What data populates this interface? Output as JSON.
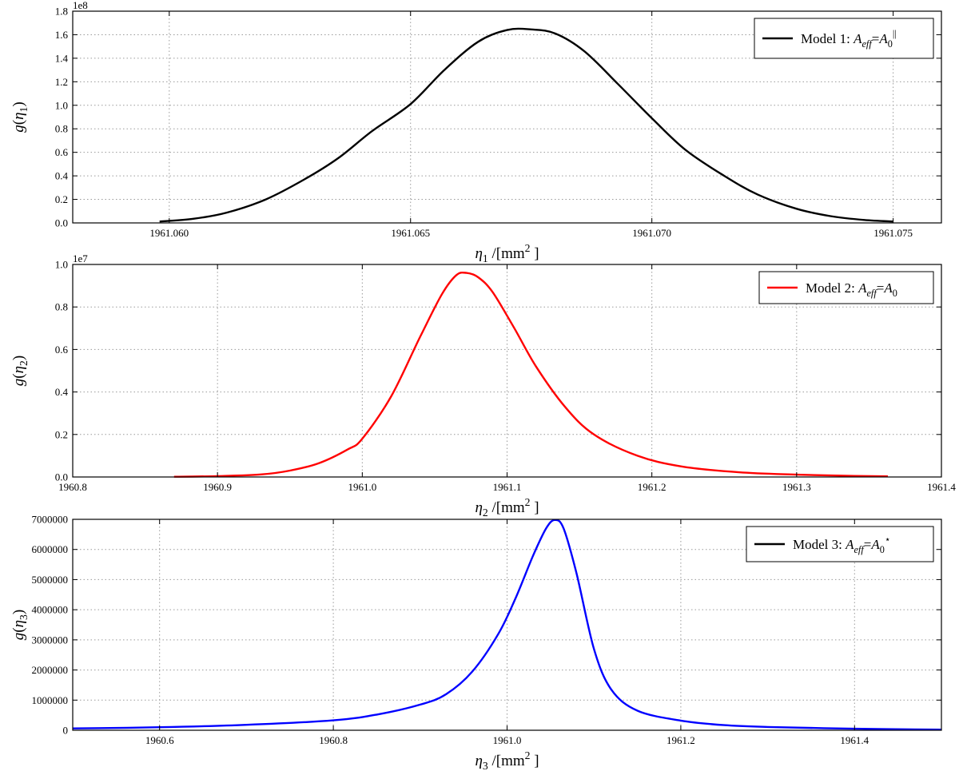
{
  "figure": {
    "chart_data": [
      {
        "type": "line",
        "title": "",
        "offset_text": "1e8",
        "xlabel_parts": [
          {
            "t": "η",
            "italic": true
          },
          {
            "t": "1",
            "sub": true,
            "italic": false
          },
          {
            "t": " /[mm",
            "italic": false
          },
          {
            "t": "2",
            "sup": true,
            "italic": false
          },
          {
            "t": " ]",
            "italic": false
          }
        ],
        "ylabel_parts": [
          {
            "t": "g",
            "italic": true
          },
          {
            "t": "(",
            "italic": false
          },
          {
            "t": "η",
            "italic": true
          },
          {
            "t": "1",
            "sub": true,
            "italic": false
          },
          {
            "t": ")",
            "italic": false
          }
        ],
        "xlim": [
          1961.058,
          1961.076
        ],
        "ylim": [
          0,
          1.8
        ],
        "xticks": [
          1961.06,
          1961.065,
          1961.07,
          1961.075
        ],
        "xticklabels": [
          "1961.060",
          "1961.065",
          "1961.070",
          "1961.075"
        ],
        "yticks": [
          0,
          0.2,
          0.4,
          0.6,
          0.8,
          1.0,
          1.2,
          1.4,
          1.6,
          1.8
        ],
        "yticklabels": [
          "0.0",
          "0.2",
          "0.4",
          "0.6",
          "0.8",
          "1.0",
          "1.2",
          "1.4",
          "1.6",
          "1.8"
        ],
        "grid": true,
        "legend_position": "upper right",
        "series": [
          {
            "color": "#000000",
            "legend_parts": [
              {
                "t": "Model 1: ",
                "italic": false
              },
              {
                "t": "A",
                "italic": true
              },
              {
                "t": "eff",
                "sub": true,
                "italic": true
              },
              {
                "t": "=",
                "italic": false
              },
              {
                "t": "A",
                "italic": true
              },
              {
                "t": "0",
                "sub": true,
                "italic": false
              },
              {
                "t": "||",
                "sup": true,
                "italic": false
              }
            ],
            "x": [
              1961.0598,
              1961.0605,
              1961.0612,
              1961.062,
              1961.0628,
              1961.0635,
              1961.0642,
              1961.065,
              1961.0657,
              1961.0664,
              1961.067,
              1961.0675,
              1961.068,
              1961.0686,
              1961.0693,
              1961.07,
              1961.0707,
              1961.0715,
              1961.0722,
              1961.073,
              1961.0737,
              1961.0744,
              1961.075
            ],
            "y": [
              0.012,
              0.035,
              0.088,
              0.2,
              0.37,
              0.55,
              0.78,
              1.01,
              1.3,
              1.54,
              1.64,
              1.645,
              1.61,
              1.46,
              1.18,
              0.89,
              0.62,
              0.4,
              0.24,
              0.12,
              0.058,
              0.025,
              0.012
            ]
          }
        ]
      },
      {
        "type": "line",
        "title": "",
        "offset_text": "1e7",
        "xlabel_parts": [
          {
            "t": "η",
            "italic": true
          },
          {
            "t": "2",
            "sub": true,
            "italic": false
          },
          {
            "t": " /[mm",
            "italic": false
          },
          {
            "t": "2",
            "sup": true,
            "italic": false
          },
          {
            "t": " ]",
            "italic": false
          }
        ],
        "ylabel_parts": [
          {
            "t": "g",
            "italic": true
          },
          {
            "t": "(",
            "italic": false
          },
          {
            "t": "η",
            "italic": true
          },
          {
            "t": "2",
            "sub": true,
            "italic": false
          },
          {
            "t": ")",
            "italic": false
          }
        ],
        "xlim": [
          1960.8,
          1961.4
        ],
        "ylim": [
          0,
          1.0
        ],
        "xticks": [
          1960.8,
          1960.9,
          1961.0,
          1961.1,
          1961.2,
          1961.3,
          1961.4
        ],
        "xticklabels": [
          "1960.8",
          "1960.9",
          "1961.0",
          "1961.1",
          "1961.2",
          "1961.3",
          "1961.4"
        ],
        "yticks": [
          0,
          0.2,
          0.4,
          0.6,
          0.8,
          1.0
        ],
        "yticklabels": [
          "0.0",
          "0.2",
          "0.4",
          "0.6",
          "0.8",
          "1.0"
        ],
        "grid": true,
        "legend_position": "upper right",
        "series": [
          {
            "color": "#ff0000",
            "legend_parts": [
              {
                "t": "Model 2: ",
                "italic": false
              },
              {
                "t": "A",
                "italic": true
              },
              {
                "t": "eff",
                "sub": true,
                "italic": true
              },
              {
                "t": "=",
                "italic": false
              },
              {
                "t": "A",
                "italic": true
              },
              {
                "t": "0",
                "sub": true,
                "italic": false
              }
            ],
            "x": [
              1960.87,
              1960.9,
              1960.93,
              1960.95,
              1960.97,
              1960.99,
              1961.0,
              1961.02,
              1961.04,
              1961.055,
              1961.065,
              1961.072,
              1961.08,
              1961.09,
              1961.105,
              1961.12,
              1961.14,
              1961.16,
              1961.19,
              1961.22,
              1961.26,
              1961.3,
              1961.34,
              1961.363
            ],
            "y": [
              0.001,
              0.004,
              0.012,
              0.03,
              0.065,
              0.13,
              0.18,
              0.38,
              0.66,
              0.86,
              0.95,
              0.96,
              0.94,
              0.87,
              0.7,
              0.52,
              0.33,
              0.2,
              0.1,
              0.05,
              0.022,
              0.011,
              0.005,
              0.003
            ]
          }
        ]
      },
      {
        "type": "line",
        "title": "",
        "offset_text": "",
        "xlabel_parts": [
          {
            "t": "η",
            "italic": true
          },
          {
            "t": "3",
            "sub": true,
            "italic": false
          },
          {
            "t": " /[mm",
            "italic": false
          },
          {
            "t": "2",
            "sup": true,
            "italic": false
          },
          {
            "t": " ]",
            "italic": false
          }
        ],
        "ylabel_parts": [
          {
            "t": "g",
            "italic": true
          },
          {
            "t": "(",
            "italic": false
          },
          {
            "t": "η",
            "italic": true
          },
          {
            "t": "3",
            "sub": true,
            "italic": false
          },
          {
            "t": ")",
            "italic": false
          }
        ],
        "xlim": [
          1960.5,
          1961.5
        ],
        "ylim": [
          0,
          7000000
        ],
        "xticks": [
          1960.6,
          1960.8,
          1961.0,
          1961.2,
          1961.4
        ],
        "xticklabels": [
          "1960.6",
          "1960.8",
          "1961.0",
          "1961.2",
          "1961.4"
        ],
        "yticks": [
          0,
          1000000,
          2000000,
          3000000,
          4000000,
          5000000,
          6000000,
          7000000
        ],
        "yticklabels": [
          "0",
          "1000000",
          "2000000",
          "3000000",
          "4000000",
          "5000000",
          "6000000",
          "7000000"
        ],
        "grid": true,
        "legend_position": "upper right",
        "series": [
          {
            "color": "#0000ff",
            "legend_color": "#000000",
            "legend_parts": [
              {
                "t": "Model 3: ",
                "italic": false
              },
              {
                "t": "A",
                "italic": true
              },
              {
                "t": "eff",
                "sub": true,
                "italic": true
              },
              {
                "t": "=",
                "italic": false
              },
              {
                "t": "A",
                "italic": true
              },
              {
                "t": "0",
                "sub": true,
                "italic": false
              },
              {
                "t": "⋆",
                "sup": true,
                "italic": false
              }
            ],
            "x": [
              1960.5,
              1960.6,
              1960.7,
              1960.8,
              1960.85,
              1960.9,
              1960.93,
              1960.96,
              1960.99,
              1961.01,
              1961.03,
              1961.045,
              1961.055,
              1961.065,
              1961.08,
              1961.1,
              1961.12,
              1961.15,
              1961.2,
              1961.25,
              1961.3,
              1961.4,
              1961.5
            ],
            "y": [
              60000,
              100000,
              180000,
              330000,
              520000,
              850000,
              1200000,
              1950000,
              3200000,
              4400000,
              5800000,
              6700000,
              6980000,
              6700000,
              5200000,
              2700000,
              1350000,
              650000,
              320000,
              170000,
              110000,
              50000,
              20000
            ]
          }
        ]
      }
    ]
  }
}
